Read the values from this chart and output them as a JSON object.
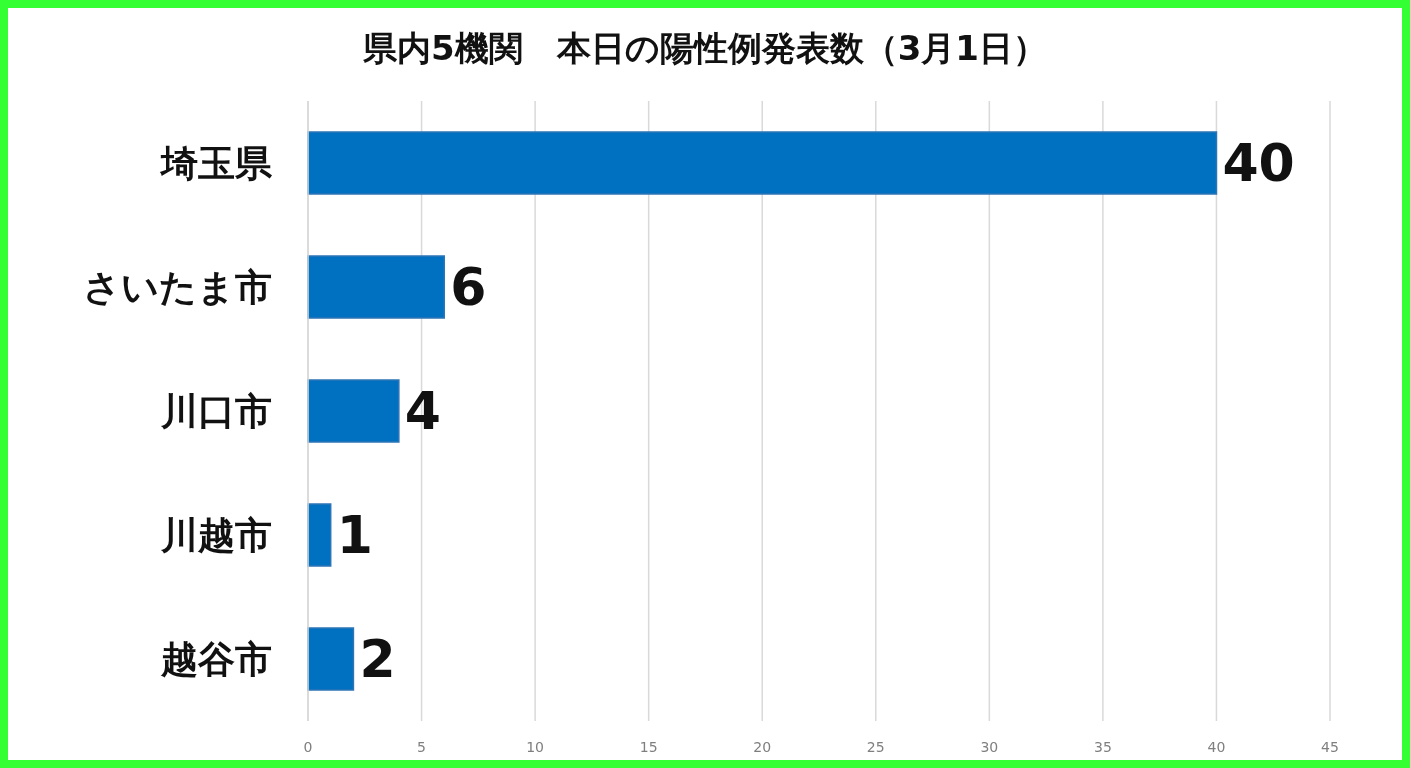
{
  "chart_data": {
    "type": "bar",
    "orientation": "horizontal",
    "title": "県内5機関　本日の陽性例発表数（3月1日）",
    "categories": [
      "埼玉県",
      "さいたま市",
      "川口市",
      "川越市",
      "越谷市"
    ],
    "values": [
      40,
      6,
      4,
      1,
      2
    ],
    "color": "#0070c0",
    "xlim": [
      0,
      45
    ],
    "xticks": [
      0,
      5,
      10,
      15,
      20,
      25,
      30,
      35,
      40,
      45
    ],
    "grid": "x",
    "data_labels": true
  }
}
